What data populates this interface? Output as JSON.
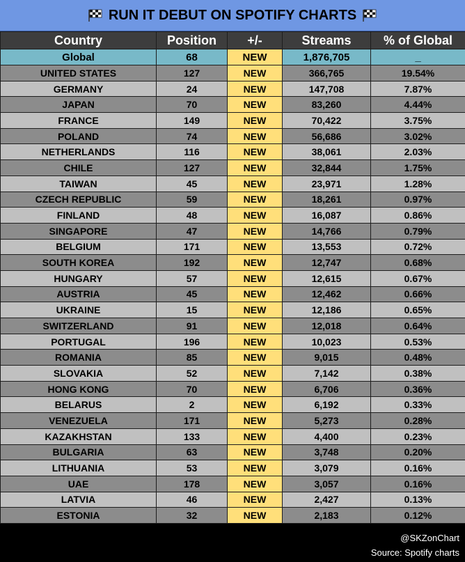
{
  "title": "RUN IT DEBUT ON SPOTIFY CHARTS",
  "headers": [
    "Country",
    "Position",
    "+/-",
    "Streams",
    "% of Global"
  ],
  "global_row": {
    "country": "Global",
    "position": "68",
    "change": "NEW",
    "streams": "1,876,705",
    "pct": "_"
  },
  "rows": [
    {
      "country": "UNITED STATES",
      "position": "127",
      "change": "NEW",
      "streams": "366,765",
      "pct": "19.54%"
    },
    {
      "country": "GERMANY",
      "position": "24",
      "change": "NEW",
      "streams": "147,708",
      "pct": "7.87%"
    },
    {
      "country": "JAPAN",
      "position": "70",
      "change": "NEW",
      "streams": "83,260",
      "pct": "4.44%"
    },
    {
      "country": "FRANCE",
      "position": "149",
      "change": "NEW",
      "streams": "70,422",
      "pct": "3.75%"
    },
    {
      "country": "POLAND",
      "position": "74",
      "change": "NEW",
      "streams": "56,686",
      "pct": "3.02%"
    },
    {
      "country": "NETHERLANDS",
      "position": "116",
      "change": "NEW",
      "streams": "38,061",
      "pct": "2.03%"
    },
    {
      "country": "CHILE",
      "position": "127",
      "change": "NEW",
      "streams": "32,844",
      "pct": "1.75%"
    },
    {
      "country": "TAIWAN",
      "position": "45",
      "change": "NEW",
      "streams": "23,971",
      "pct": "1.28%"
    },
    {
      "country": "CZECH REPUBLIC",
      "position": "59",
      "change": "NEW",
      "streams": "18,261",
      "pct": "0.97%"
    },
    {
      "country": "FINLAND",
      "position": "48",
      "change": "NEW",
      "streams": "16,087",
      "pct": "0.86%"
    },
    {
      "country": "SINGAPORE",
      "position": "47",
      "change": "NEW",
      "streams": "14,766",
      "pct": "0.79%"
    },
    {
      "country": "BELGIUM",
      "position": "171",
      "change": "NEW",
      "streams": "13,553",
      "pct": "0.72%"
    },
    {
      "country": "SOUTH KOREA",
      "position": "192",
      "change": "NEW",
      "streams": "12,747",
      "pct": "0.68%"
    },
    {
      "country": "HUNGARY",
      "position": "57",
      "change": "NEW",
      "streams": "12,615",
      "pct": "0.67%"
    },
    {
      "country": "AUSTRIA",
      "position": "45",
      "change": "NEW",
      "streams": "12,462",
      "pct": "0.66%"
    },
    {
      "country": "UKRAINE",
      "position": "15",
      "change": "NEW",
      "streams": "12,186",
      "pct": "0.65%"
    },
    {
      "country": "SWITZERLAND",
      "position": "91",
      "change": "NEW",
      "streams": "12,018",
      "pct": "0.64%"
    },
    {
      "country": "PORTUGAL",
      "position": "196",
      "change": "NEW",
      "streams": "10,023",
      "pct": "0.53%"
    },
    {
      "country": "ROMANIA",
      "position": "85",
      "change": "NEW",
      "streams": "9,015",
      "pct": "0.48%"
    },
    {
      "country": "SLOVAKIA",
      "position": "52",
      "change": "NEW",
      "streams": "7,142",
      "pct": "0.38%"
    },
    {
      "country": "HONG KONG",
      "position": "70",
      "change": "NEW",
      "streams": "6,706",
      "pct": "0.36%"
    },
    {
      "country": "BELARUS",
      "position": "2",
      "change": "NEW",
      "streams": "6,192",
      "pct": "0.33%"
    },
    {
      "country": "VENEZUELA",
      "position": "171",
      "change": "NEW",
      "streams": "5,273",
      "pct": "0.28%"
    },
    {
      "country": "KAZAKHSTAN",
      "position": "133",
      "change": "NEW",
      "streams": "4,400",
      "pct": "0.23%"
    },
    {
      "country": "BULGARIA",
      "position": "63",
      "change": "NEW",
      "streams": "3,748",
      "pct": "0.20%"
    },
    {
      "country": "LITHUANIA",
      "position": "53",
      "change": "NEW",
      "streams": "3,079",
      "pct": "0.16%"
    },
    {
      "country": "UAE",
      "position": "178",
      "change": "NEW",
      "streams": "3,057",
      "pct": "0.16%"
    },
    {
      "country": "LATVIA",
      "position": "46",
      "change": "NEW",
      "streams": "2,427",
      "pct": "0.13%"
    },
    {
      "country": "ESTONIA",
      "position": "32",
      "change": "NEW",
      "streams": "2,183",
      "pct": "0.12%"
    }
  ],
  "footer": {
    "handle": "@SKZonChart",
    "source": "Source: Spotify charts"
  },
  "icons": {
    "title_left": "checkered-flag-icon",
    "title_right": "checkered-flag-icon"
  },
  "colors": {
    "title_bg": "#6f97e3",
    "header_bg": "#3d3d3d",
    "global_bg": "#78b9c8",
    "new_bg": "#ffdf7a",
    "row_dark": "#8c8c8c",
    "row_light": "#c0c0c0"
  }
}
